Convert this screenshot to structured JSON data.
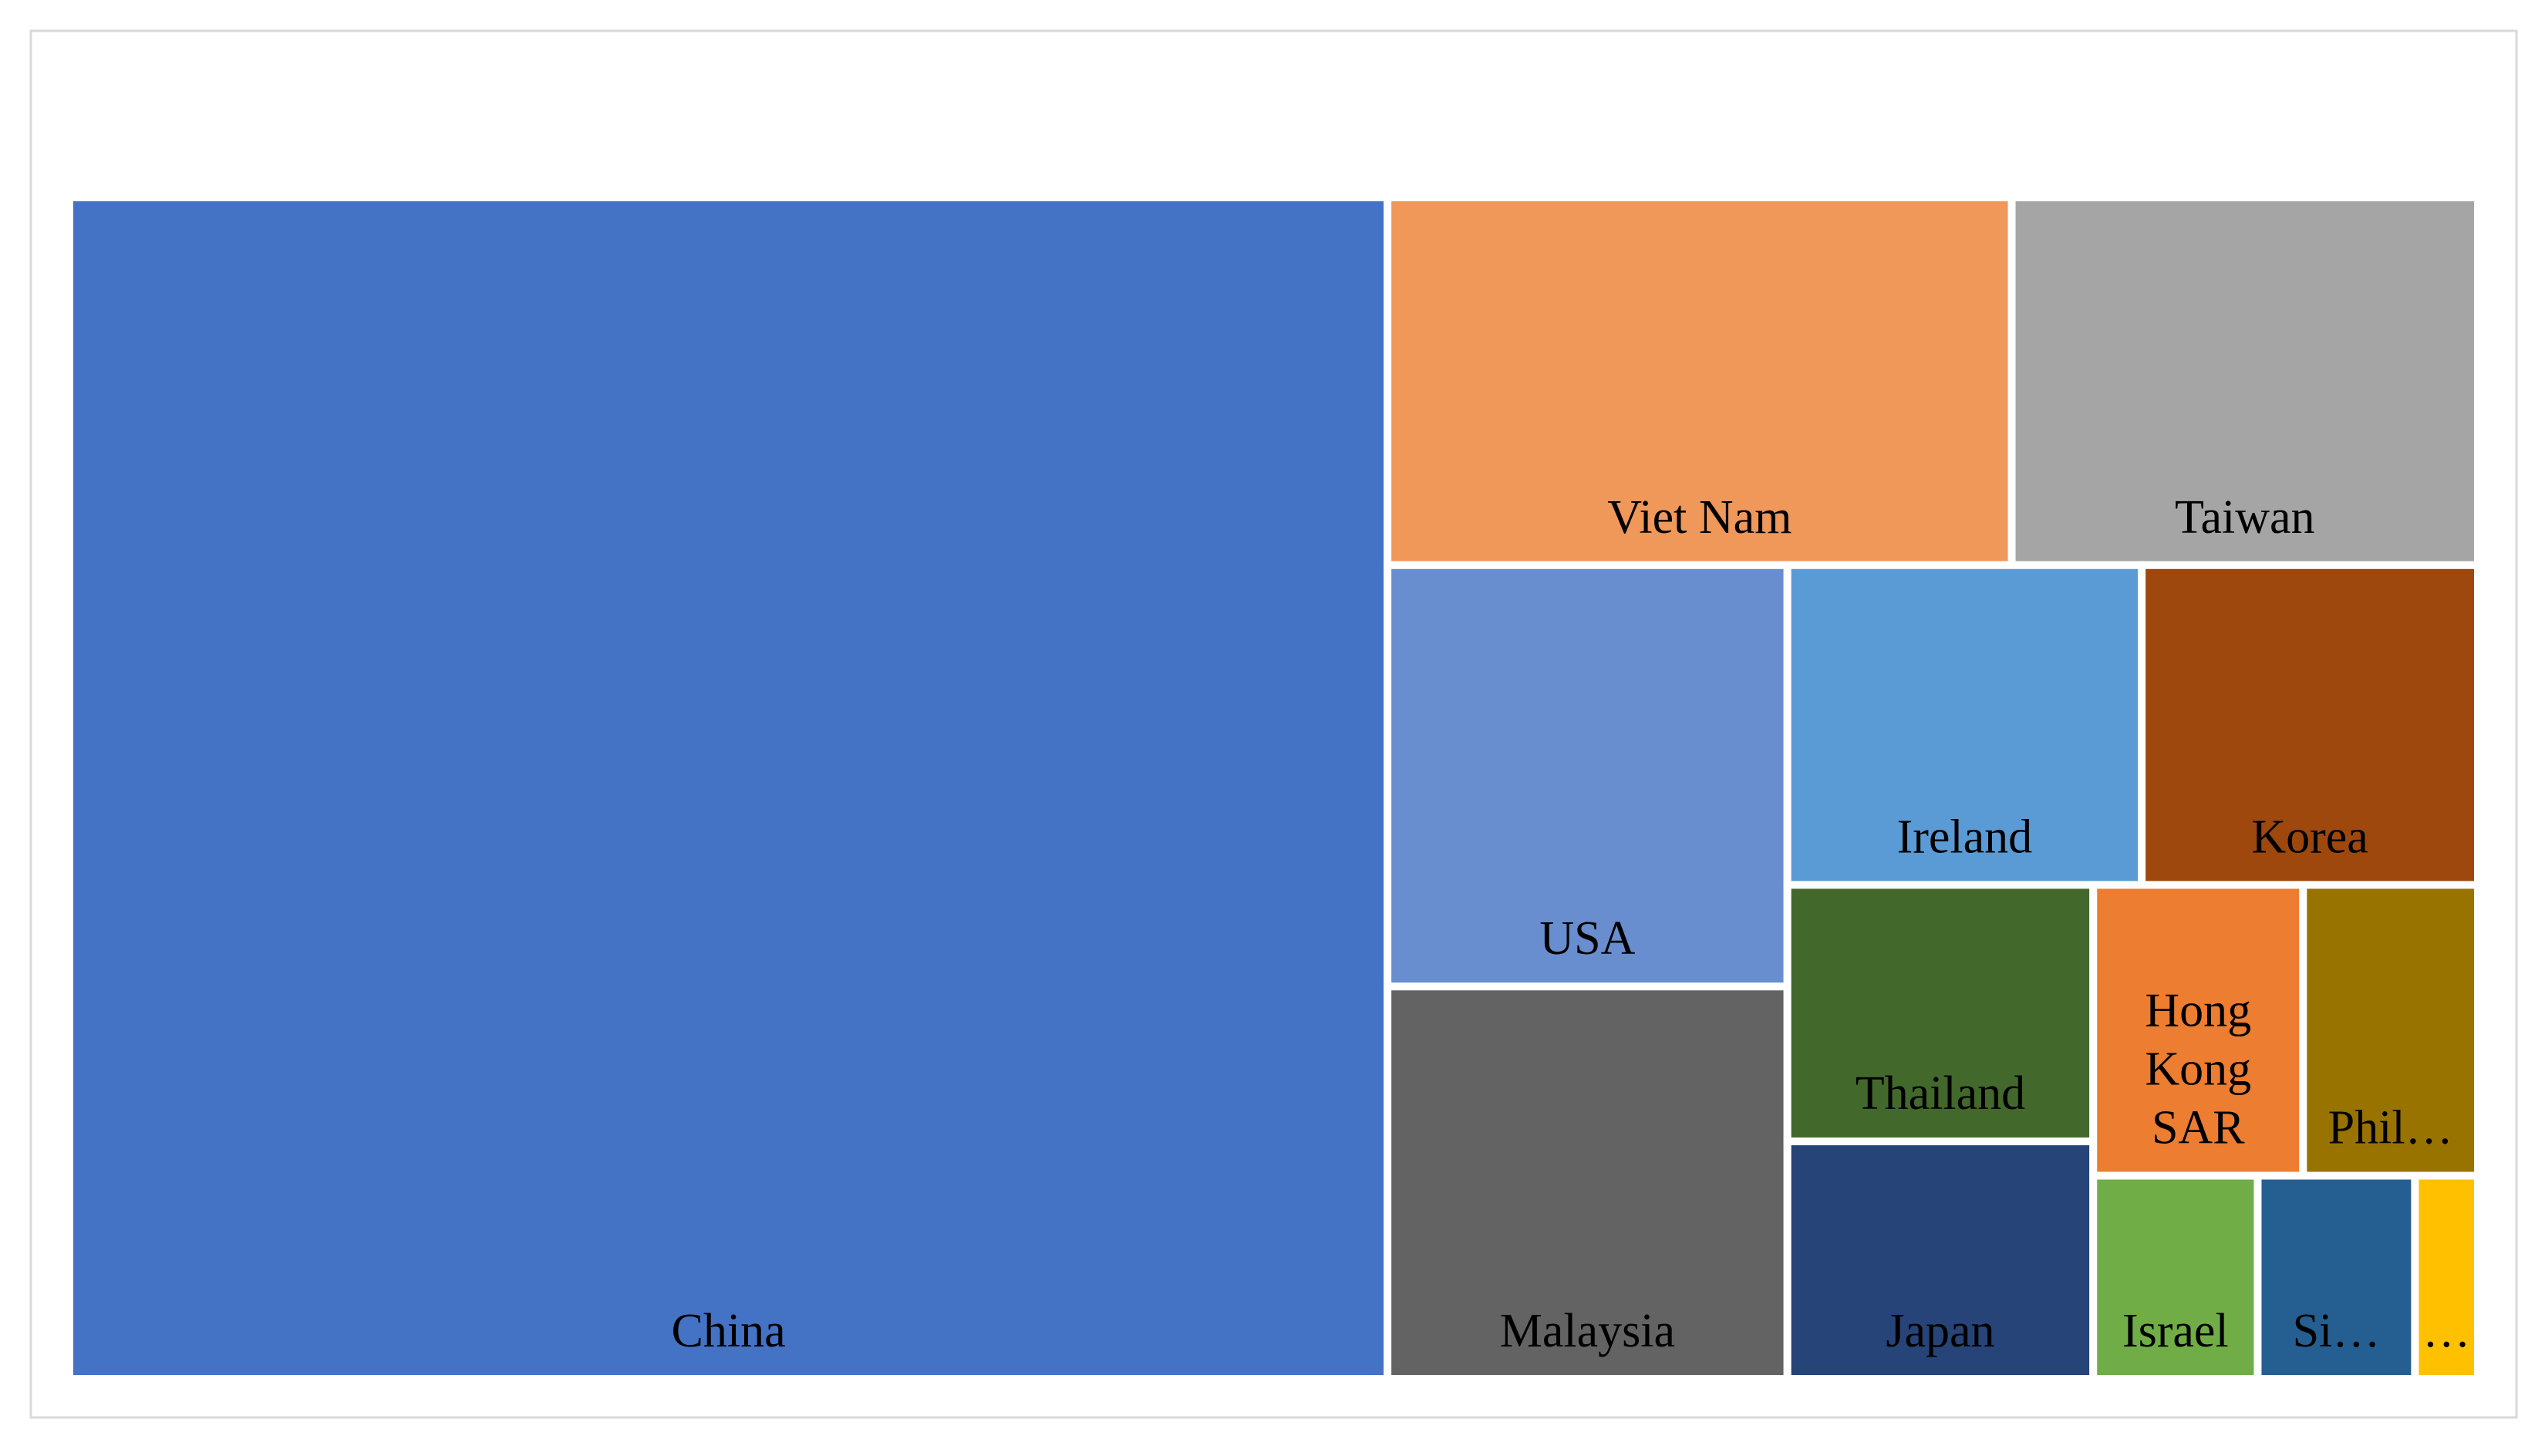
{
  "chart_data": {
    "type": "treemap",
    "categories": [
      "China",
      "Viet Nam",
      "Taiwan",
      "USA",
      "Malaysia",
      "Ireland",
      "Korea",
      "Thailand",
      "Japan",
      "Hong Kong SAR",
      "Phil…",
      "Israel",
      "Si…",
      "…"
    ],
    "values": [
      53.6,
      7.9,
      5.9,
      5.8,
      5.4,
      3.9,
      3.7,
      2.7,
      2.5,
      2.1,
      1.75,
      1.15,
      1.1,
      0.44
    ],
    "colors": [
      "#4472c4",
      "#f0975a",
      "#a5a5a5",
      "#698ecf",
      "#636363",
      "#5b9bd5",
      "#9e480e",
      "#43682b",
      "#264478",
      "#ed7d31",
      "#997300",
      "#70ad47",
      "#255e91",
      "#ffc000"
    ]
  }
}
